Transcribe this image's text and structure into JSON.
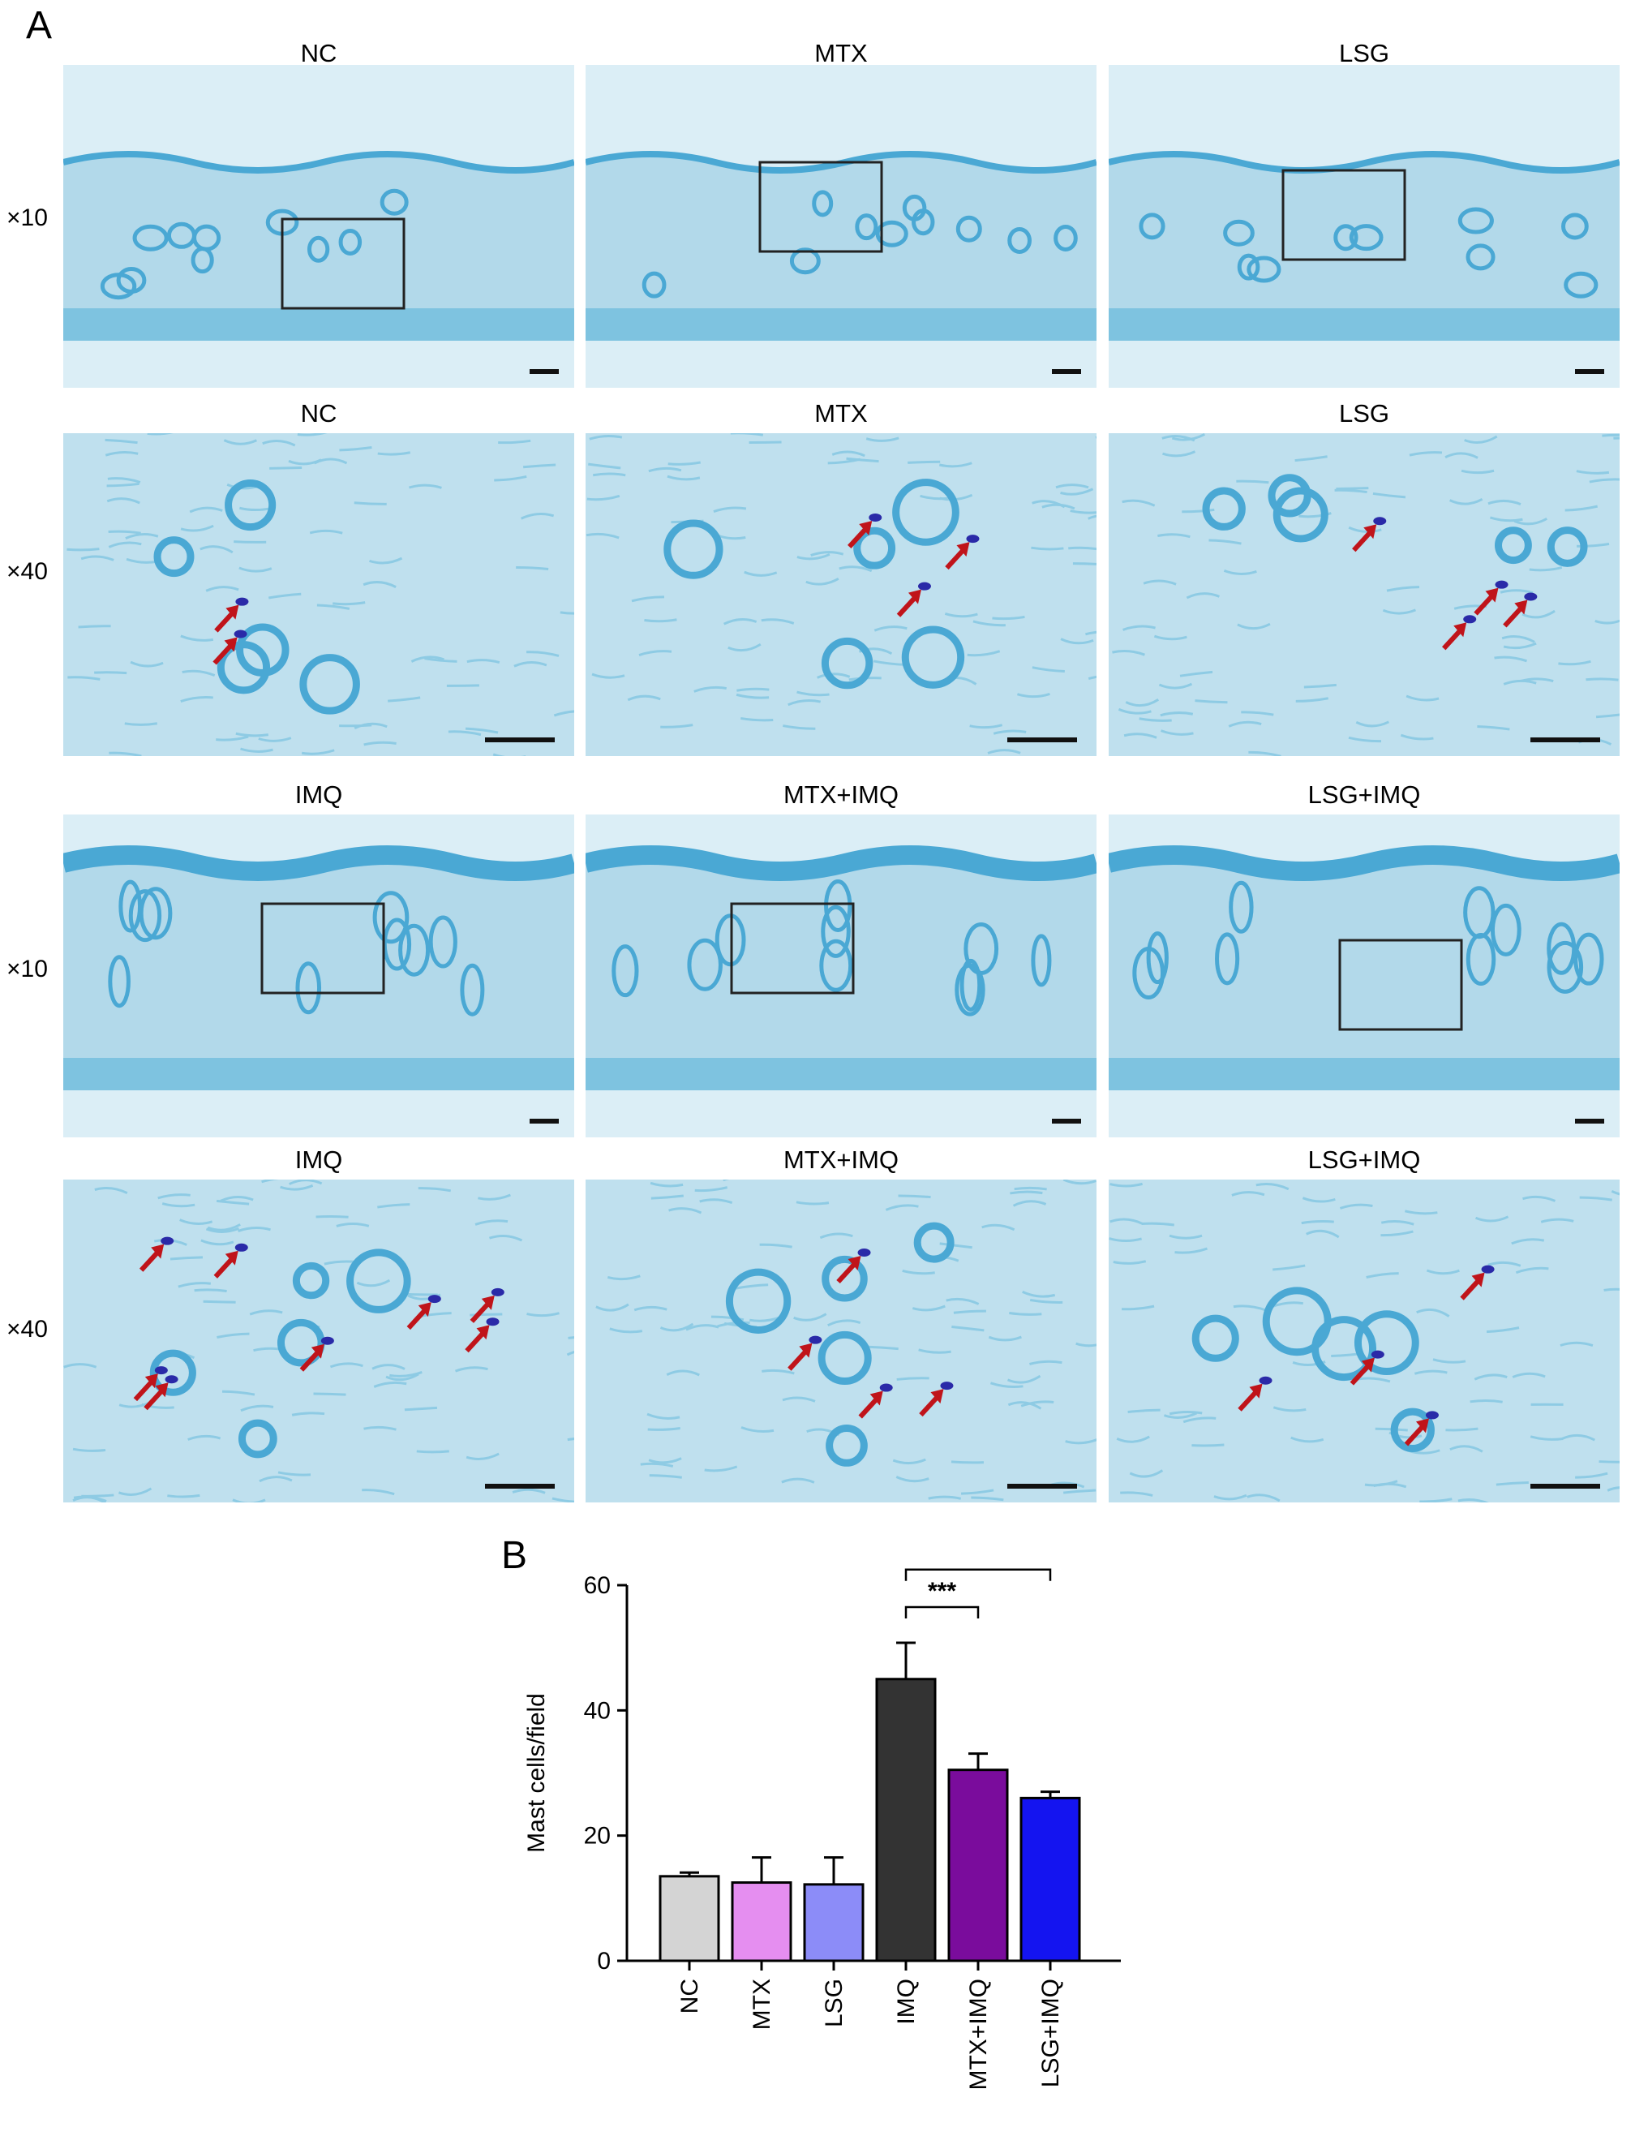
{
  "figure": {
    "panel_a_label": "A",
    "panel_b_label": "B",
    "rows": [
      {
        "magnification": "×10",
        "titles": [
          "NC",
          "MTX",
          "LSG"
        ]
      },
      {
        "magnification": "×40",
        "titles": [
          "NC",
          "MTX",
          "LSG"
        ]
      },
      {
        "magnification": "×10",
        "titles": [
          "IMQ",
          "MTX+IMQ",
          "LSG+IMQ"
        ]
      },
      {
        "magnification": "×40",
        "titles": [
          "IMQ",
          "MTX+IMQ",
          "LSG+IMQ"
        ]
      }
    ]
  },
  "colors": {
    "tissue_bg": "#bfe0ee",
    "tissue_stain": "#4aa8d4",
    "mast_cell": "#2a2aa8",
    "arrow": "#c0141a"
  },
  "chart_data": {
    "type": "bar",
    "categories": [
      "NC",
      "MTX",
      "LSG",
      "IMQ",
      "MTX+IMQ",
      "LSG+IMQ"
    ],
    "values": [
      13.5,
      12.5,
      12.2,
      45,
      30.5,
      26
    ],
    "errors": [
      0.6,
      4,
      4.3,
      5.8,
      2.6,
      1
    ],
    "bar_colors": [
      "#d4d4d4",
      "#e58ef0",
      "#8c8cf8",
      "#333333",
      "#7a0c9c",
      "#1414f0"
    ],
    "ylabel": "Mast cells/field",
    "ylim": [
      0,
      60
    ],
    "yticks": [
      0,
      20,
      40,
      60
    ],
    "significance": [
      {
        "from": "IMQ",
        "to": "MTX+IMQ",
        "label": "***"
      },
      {
        "from": "IMQ",
        "to": "LSG+IMQ",
        "label": "***"
      }
    ]
  }
}
